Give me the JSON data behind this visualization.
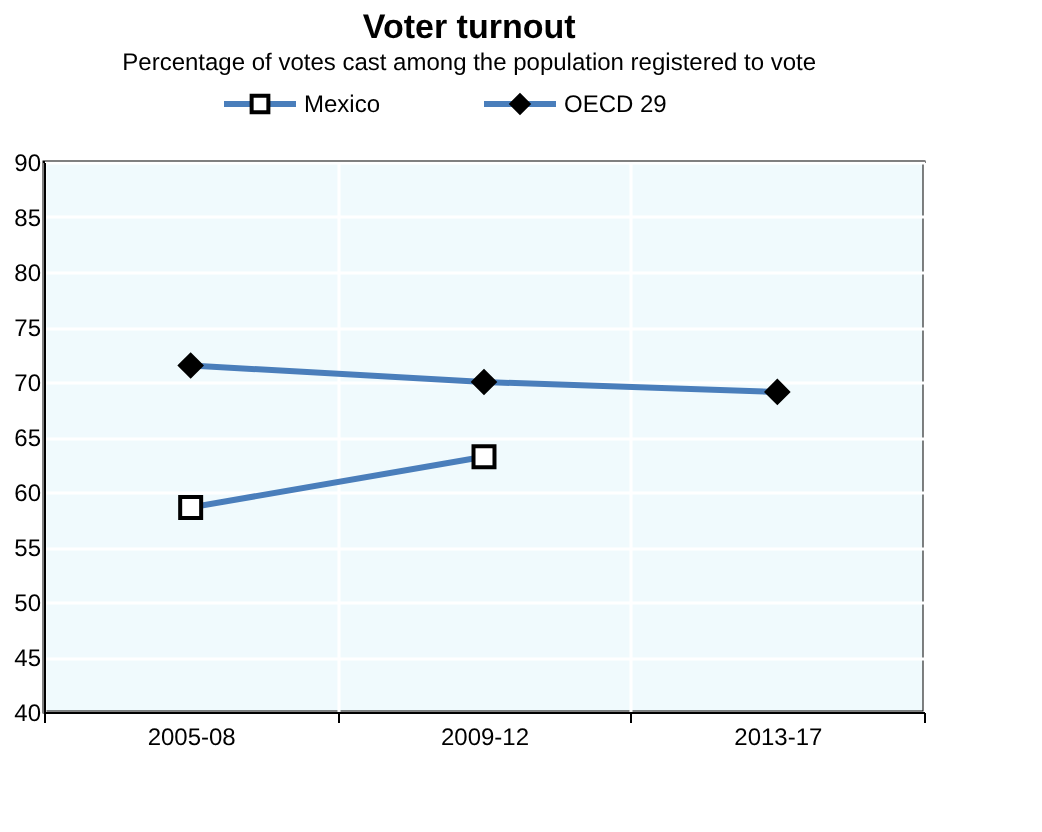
{
  "chart_data": {
    "type": "line",
    "title": "Voter turnout",
    "subtitle": "Percentage of votes cast among the population registered to vote",
    "categories": [
      "2005-08",
      "2009-12",
      "2013-17"
    ],
    "series": [
      {
        "name": "Mexico",
        "color": "#4a7ebb",
        "marker": "square",
        "values": [
          58.6,
          63.2,
          null
        ]
      },
      {
        "name": "OECD 29",
        "color": "#4a7ebb",
        "marker": "diamond",
        "values": [
          71.5,
          70.0,
          69.1
        ]
      }
    ],
    "ylim": [
      40,
      90
    ],
    "yticks": [
      40,
      45,
      50,
      55,
      60,
      65,
      70,
      75,
      80,
      85,
      90
    ],
    "grid": true,
    "legend": "top"
  }
}
